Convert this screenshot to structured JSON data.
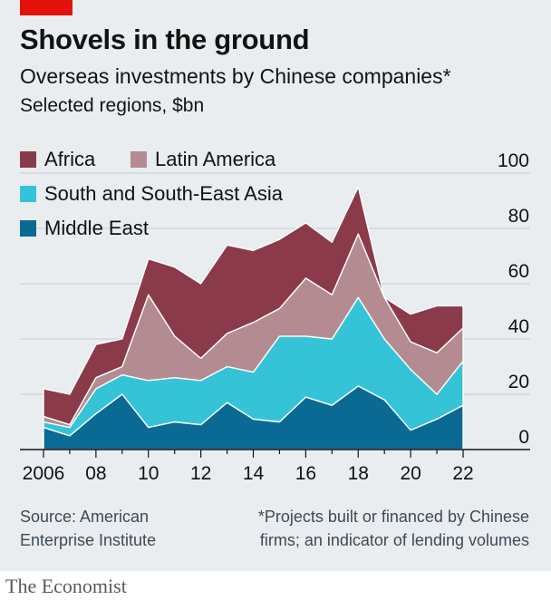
{
  "header": {
    "title": "Shovels in the ground",
    "subtitle": "Overseas investments by Chinese companies*",
    "unit": "Selected regions, $bn"
  },
  "legend": [
    {
      "label": "Africa",
      "color": "#8b3a4a"
    },
    {
      "label": "Latin America",
      "color": "#b58b92"
    },
    {
      "label": "South and South-East Asia",
      "color": "#35c4d7"
    },
    {
      "label": "Middle East",
      "color": "#0a6a94"
    }
  ],
  "footer": {
    "source": "Source: American Enterprise Institute",
    "footnote": "*Projects built or financed by Chinese firms; an indicator of lending volumes",
    "brand": "The Economist"
  },
  "chart_data": {
    "type": "area",
    "stacked": true,
    "title": "Shovels in the ground",
    "subtitle": "Overseas investments by Chinese companies*",
    "ylabel": "Selected regions, $bn",
    "x": [
      2006,
      2007,
      2008,
      2009,
      2010,
      2011,
      2012,
      2013,
      2014,
      2015,
      2016,
      2017,
      2018,
      2019,
      2020,
      2021,
      2022
    ],
    "xticks": [
      2006,
      2008,
      2010,
      2012,
      2014,
      2016,
      2018,
      2020,
      2022
    ],
    "xtick_labels": [
      "2006",
      "08",
      "10",
      "12",
      "14",
      "16",
      "18",
      "20",
      "22"
    ],
    "ylim": [
      0,
      100
    ],
    "yticks": [
      0,
      20,
      40,
      60,
      80,
      100
    ],
    "y_axis_side": "right",
    "legend_position": "top-left",
    "series": [
      {
        "name": "Middle East",
        "color": "#0a6a94",
        "values": [
          8,
          5,
          13,
          20,
          8,
          10,
          9,
          17,
          11,
          10,
          19,
          16,
          23,
          18,
          7,
          11,
          16
        ]
      },
      {
        "name": "South and South-East Asia",
        "color": "#35c4d7",
        "values": [
          2,
          3,
          9,
          7,
          17,
          16,
          16,
          13,
          17,
          31,
          22,
          24,
          32,
          22,
          22,
          9,
          16
        ]
      },
      {
        "name": "Latin America",
        "color": "#b58b92",
        "values": [
          2,
          1,
          4,
          3,
          31,
          15,
          8,
          12,
          18,
          10,
          21,
          16,
          23,
          15,
          10,
          15,
          12
        ]
      },
      {
        "name": "Africa",
        "color": "#8b3a4a",
        "values": [
          10,
          11,
          12,
          10,
          13,
          25,
          27,
          32,
          26,
          25,
          20,
          19,
          17,
          0,
          10,
          17,
          8
        ]
      }
    ]
  }
}
